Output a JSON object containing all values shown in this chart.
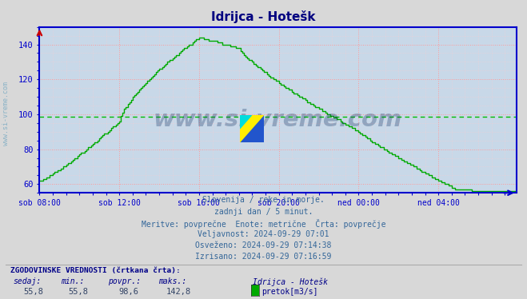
{
  "title": "Idrijca - Hotešk",
  "title_color": "#000080",
  "bg_color": "#d8d8d8",
  "plot_bg_color": "#c8d8e8",
  "grid_color_major": "#ff9999",
  "grid_color_minor": "#ffcccc",
  "line_color": "#00aa00",
  "avg_line_color": "#00bb00",
  "avg_line_value": 98.6,
  "y_min": 55,
  "y_max": 150,
  "yticks": [
    60,
    80,
    100,
    120,
    140
  ],
  "x_tick_labels": [
    "sob 08:00",
    "sob 12:00",
    "sob 16:00",
    "sob 20:00",
    "ned 00:00",
    "ned 04:00"
  ],
  "x_tick_positions": [
    0,
    48,
    96,
    144,
    192,
    240
  ],
  "axis_color": "#0000cc",
  "watermark_text": "www.si-vreme.com",
  "watermark_color": "#1a3a6a",
  "watermark_alpha": 0.32,
  "side_label_color": "#5599bb",
  "side_label_alpha": 0.6,
  "info_lines": [
    "Slovenija / reke in morje.",
    "zadnji dan / 5 minut.",
    "Meritve: povprečne  Enote: metrične  Črta: povprečje",
    "Veljavnost: 2024-09-29 07:01",
    "Osveženo: 2024-09-29 07:14:38",
    "Izrisano: 2024-09-29 07:16:59"
  ],
  "bottom_left_text": "ZGODOVINSKE VREDNOSTI (črtkana črta):",
  "bottom_row_labels": [
    "sedaj:",
    "min.:",
    "povpr.:",
    "maks.:"
  ],
  "bottom_row_values": [
    "55,8",
    "55,8",
    "98,6",
    "142,8"
  ],
  "legend_label": "pretok[m3/s]",
  "legend_station": "Idrijca - Hotešk",
  "legend_color": "#00aa00",
  "n_points": 288
}
